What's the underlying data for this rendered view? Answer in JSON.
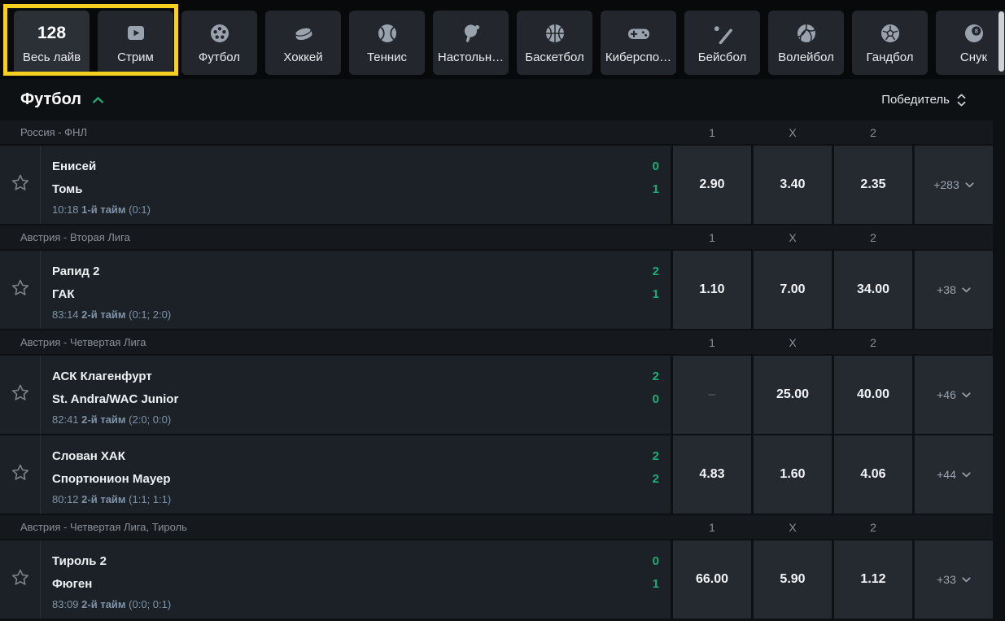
{
  "colors": {
    "highlight_yellow": "#f6d021",
    "live_green": "#1fae75",
    "time_text": "#7f94a9"
  },
  "top_nav": {
    "tabs": [
      {
        "id": "all-live",
        "label": "Весь лайв",
        "badge": "128",
        "active": true,
        "highlighted": true
      },
      {
        "id": "stream",
        "label": "Стрим",
        "icon": "stream-play-icon",
        "highlighted": true
      },
      {
        "id": "football",
        "label": "Футбол",
        "icon": "football-icon"
      },
      {
        "id": "hockey",
        "label": "Хоккей",
        "icon": "hockey-puck-icon"
      },
      {
        "id": "tennis",
        "label": "Теннис",
        "icon": "tennis-ball-icon"
      },
      {
        "id": "table-tennis",
        "label": "Настольн…",
        "icon": "table-tennis-icon"
      },
      {
        "id": "basketball",
        "label": "Баскетбол",
        "icon": "basketball-icon"
      },
      {
        "id": "esports",
        "label": "Киберспо…",
        "icon": "esports-gamepad-icon"
      },
      {
        "id": "baseball",
        "label": "Бейсбол",
        "icon": "baseball-bat-icon"
      },
      {
        "id": "volleyball",
        "label": "Волейбол",
        "icon": "volleyball-icon"
      },
      {
        "id": "handball",
        "label": "Гандбол",
        "icon": "handball-icon"
      },
      {
        "id": "snooker",
        "label": "Снук",
        "icon": "snooker-eight-ball-icon"
      }
    ]
  },
  "sport_section": {
    "title": "Футбол",
    "collapse_icon": "chevron-up-icon",
    "market_selector_label": "Победитель",
    "market_selector_icon": "sort-arrows-icon"
  },
  "odds_columns": [
    "1",
    "X",
    "2"
  ],
  "odds_placeholder": "–",
  "leagues": [
    {
      "name": "Россия - ФНЛ",
      "matches": [
        {
          "home": "Енисей",
          "away": "Томь",
          "home_score": "0",
          "away_score": "1",
          "time": "10:18",
          "period": "1-й тайм",
          "period_score": "(0:1)",
          "odds": [
            "2.90",
            "3.40",
            "2.35"
          ],
          "more": "+283"
        }
      ]
    },
    {
      "name": "Австрия - Вторая Лига",
      "matches": [
        {
          "home": "Рапид 2",
          "away": "ГАК",
          "home_score": "2",
          "away_score": "1",
          "time": "83:14",
          "period": "2-й тайм",
          "period_score": "(0:1; 2:0)",
          "odds": [
            "1.10",
            "7.00",
            "34.00"
          ],
          "more": "+38"
        }
      ]
    },
    {
      "name": "Австрия - Четвертая Лига",
      "matches": [
        {
          "home": "АСК Клагенфурт",
          "away": "St. Andra/WAC Junior",
          "home_score": "2",
          "away_score": "0",
          "time": "82:41",
          "period": "2-й тайм",
          "period_score": "(2:0; 0:0)",
          "odds": [
            "–",
            "25.00",
            "40.00"
          ],
          "more": "+46"
        },
        {
          "home": "Слован ХАК",
          "away": "Спортюнион Мауер",
          "home_score": "2",
          "away_score": "2",
          "time": "80:12",
          "period": "2-й тайм",
          "period_score": "(1:1; 1:1)",
          "odds": [
            "4.83",
            "1.60",
            "4.06"
          ],
          "more": "+44"
        }
      ]
    },
    {
      "name": "Австрия - Четвертая Лига, Тироль",
      "matches": [
        {
          "home": "Тироль 2",
          "away": "Фюген",
          "home_score": "0",
          "away_score": "1",
          "time": "83:09",
          "period": "2-й тайм",
          "period_score": "(0:0; 0:1)",
          "odds": [
            "66.00",
            "5.90",
            "1.12"
          ],
          "more": "+33"
        }
      ]
    }
  ]
}
